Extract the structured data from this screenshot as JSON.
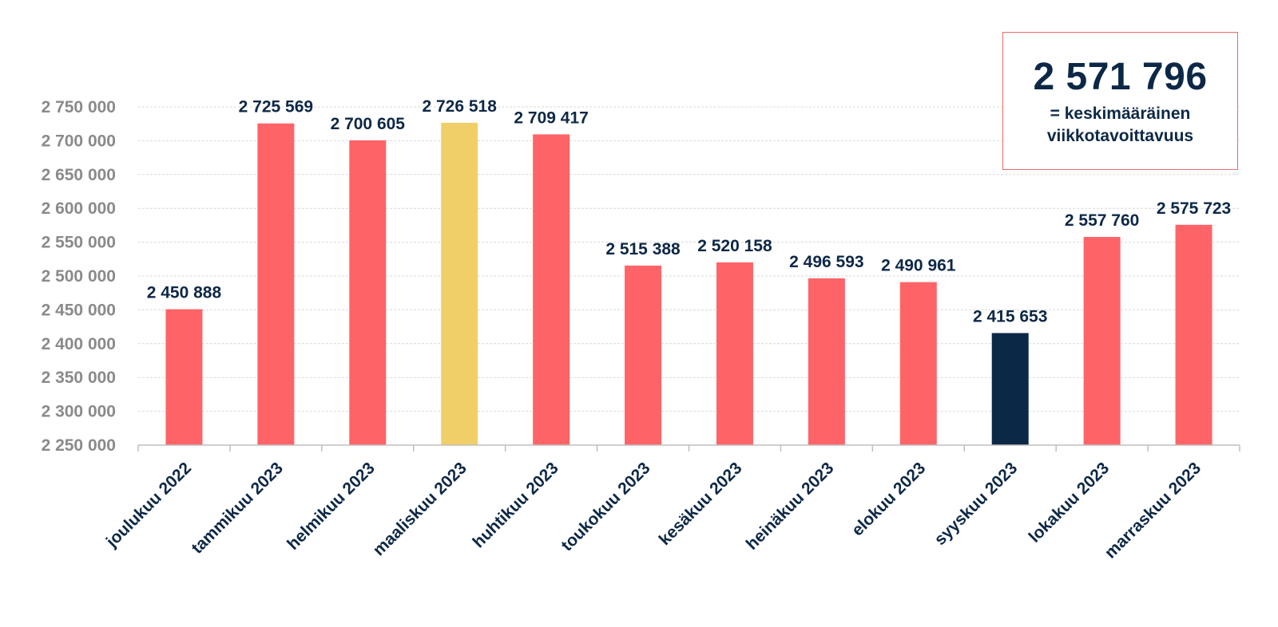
{
  "chart_data": {
    "type": "bar",
    "categories": [
      "joulukuu 2022",
      "tammikuu 2023",
      "helmikuu 2023",
      "maaliskuu 2023",
      "huhtikuu 2023",
      "toukokuu 2023",
      "kesäkuu 2023",
      "heinäkuu 2023",
      "elokuu 2023",
      "syyskuu 2023",
      "lokakuu 2023",
      "marraskuu 2023"
    ],
    "values": [
      2450888,
      2725569,
      2700605,
      2726518,
      2709417,
      2515388,
      2520158,
      2496593,
      2490961,
      2415653,
      2557760,
      2575723
    ],
    "data_labels": [
      "2 450 888",
      "2 725 569",
      "2 700 605",
      "2 726 518",
      "2 709 417",
      "2 515 388",
      "2 520 158",
      "2 496 593",
      "2 490 961",
      "2 415 653",
      "2 557 760",
      "2 575 723"
    ],
    "bar_colors": [
      "#fe6467",
      "#fe6467",
      "#fe6467",
      "#f1cf68",
      "#fe6467",
      "#fe6467",
      "#fe6467",
      "#fe6467",
      "#fe6467",
      "#0c2847",
      "#fe6467",
      "#fe6467"
    ],
    "ylim": [
      2250000,
      2750000
    ],
    "yticks": [
      2250000,
      2300000,
      2350000,
      2400000,
      2450000,
      2500000,
      2550000,
      2600000,
      2650000,
      2700000,
      2750000
    ],
    "ytick_labels": [
      "2 250 000",
      "2 300 000",
      "2 350 000",
      "2 400 000",
      "2 450 000",
      "2 500 000",
      "2 550 000",
      "2 600 000",
      "2 650 000",
      "2 700 000",
      "2 750 000"
    ],
    "grid": true,
    "title": "",
    "xlabel": "",
    "ylabel": ""
  },
  "callout": {
    "value": "2 571 796",
    "line1": "= keskimääräinen",
    "line2": "viikkotavoittavuus"
  },
  "colors": {
    "accent_red": "#fe6467",
    "highlight_yellow": "#f1cf68",
    "dark_navy": "#0c2847",
    "axis_text": "#8a8a8a",
    "grid": "#d9d9d9"
  }
}
